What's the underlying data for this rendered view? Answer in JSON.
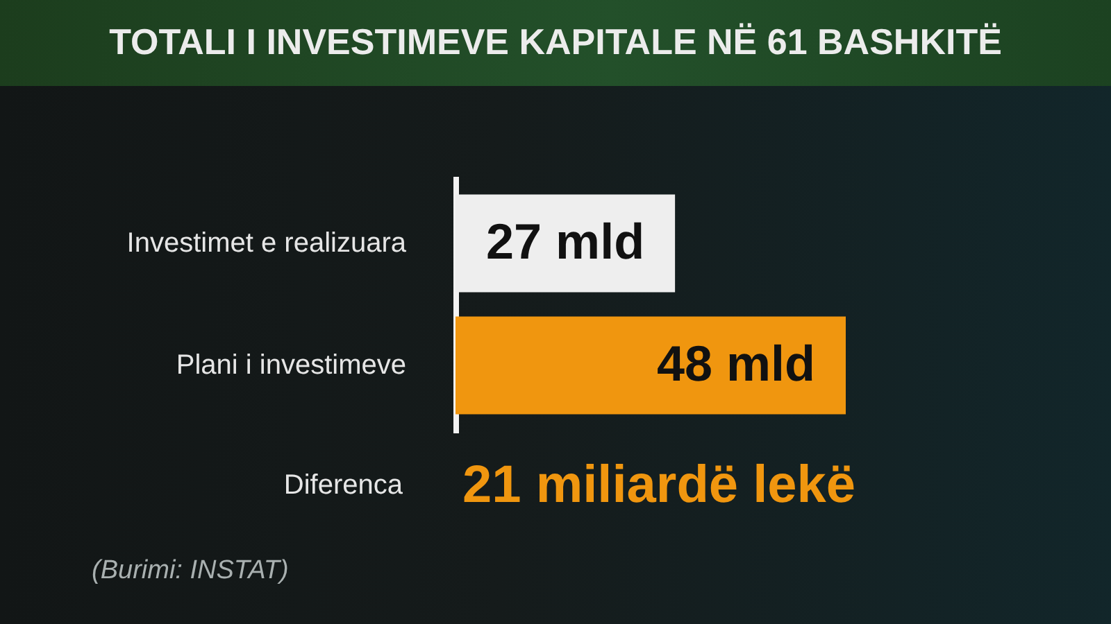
{
  "chart_data": {
    "type": "bar",
    "orientation": "horizontal",
    "title": "TOTALI I INVESTIMEVE KAPITALE NË 61 BASHKITË",
    "categories": [
      "Investimet e realizuara",
      "Plani i investimeve"
    ],
    "values": [
      27,
      48
    ],
    "colors": [
      "#eeeeee",
      "#f0960f"
    ],
    "value_labels": [
      "27 mld",
      "48 mld"
    ],
    "tick_labels": "y",
    "annotations": [
      "Diferenca",
      "21 miliardë lekë",
      "(Burimi: INSTAT)"
    ]
  }
}
